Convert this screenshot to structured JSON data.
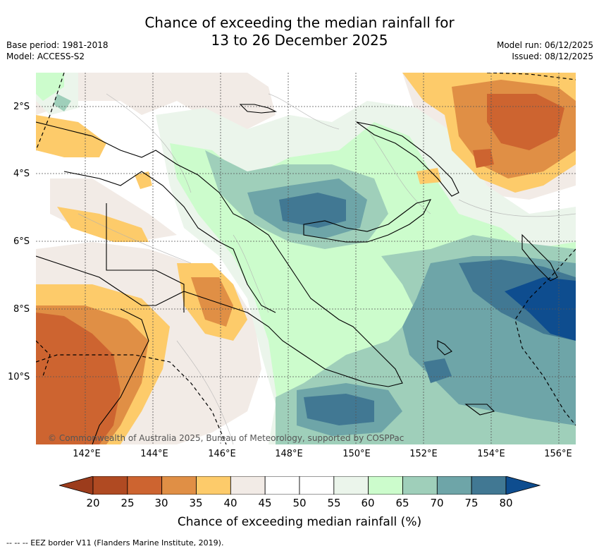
{
  "title": {
    "line1": "Chance of exceeding the median rainfall for",
    "line2": "13 to 26 December 2025"
  },
  "meta_left": {
    "base_period": "Base period: 1981-2018",
    "model": "Model: ACCESS-S2"
  },
  "meta_right": {
    "model_run": "Model run: 06/12/2025",
    "issued": "Issued: 08/12/2025"
  },
  "map": {
    "lat_labels": [
      "2°S",
      "4°S",
      "6°S",
      "8°S",
      "10°S"
    ],
    "lon_labels": [
      "142°E",
      "144°E",
      "146°E",
      "148°E",
      "150°E",
      "152°E",
      "154°E",
      "156°E"
    ],
    "copyright": "© Commonwealth of Australia 2025, Bureau of Meteorology, supported by COSPPac"
  },
  "colorbar": {
    "ticks": [
      "20",
      "25",
      "30",
      "35",
      "40",
      "45",
      "50",
      "55",
      "60",
      "65",
      "70",
      "75",
      "80"
    ],
    "colors": [
      "#b04a22",
      "#cd6430",
      "#e08f45",
      "#fdcb6a",
      "#f2ebe6",
      "#ffffff",
      "#ffffff",
      "#ebf5eb",
      "#ccfccc",
      "#9fcfba",
      "#6ea5a8",
      "#417893"
    ],
    "under_color": "#9c3c1c",
    "over_color": "#0e4d8f",
    "label": "Chance of exceeding median rainfall (%)"
  },
  "footer": "--  --  -- EEZ border V11 (Flanders Marine Institute, 2019)."
}
